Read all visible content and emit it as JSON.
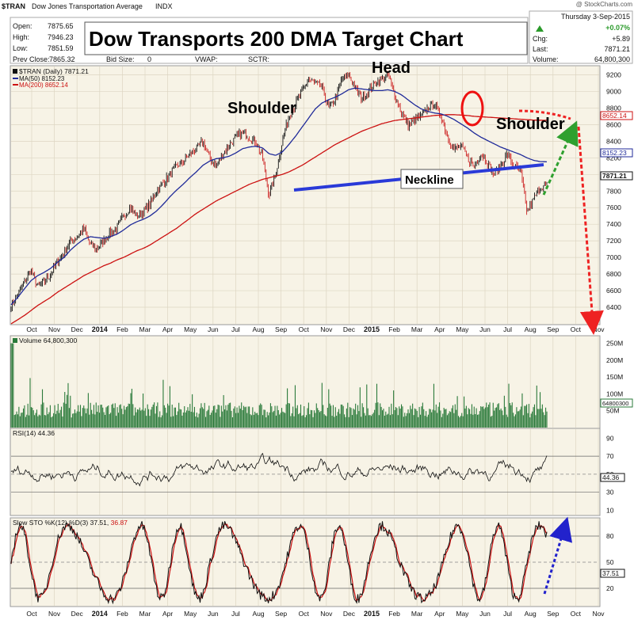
{
  "header": {
    "symbol": "$TRAN",
    "name": "Dow Jones Transportation Average",
    "exchange": "INDX",
    "date": "Thursday  3-Sep-2015",
    "watermark": "@ StockCharts.com",
    "title_box": "Dow Transports 200 DMA Target Chart",
    "fields_left": [
      {
        "label": "Open:",
        "value": "7875.65"
      },
      {
        "label": "High:",
        "value": "7946.23"
      },
      {
        "label": "Low:",
        "value": "7851.59"
      }
    ],
    "prev_close": {
      "label": "Prev Close:",
      "value": "7865.32"
    },
    "bid_size": {
      "label": "Bid Size:",
      "value": "0"
    },
    "vwap": {
      "label": "VWAP:"
    },
    "sctr": {
      "label": "SCTR:"
    },
    "change_pct": "+0.07%",
    "chg": {
      "label": "Chg:",
      "value": "+5.89"
    },
    "last": {
      "label": "Last:",
      "value": "7871.21"
    },
    "volume": {
      "label": "Volume:",
      "value": "64,800,300"
    }
  },
  "legend": {
    "price": "$TRAN (Daily) 7871.21",
    "ma50": "MA(50) 8152.23",
    "ma200": "MA(200) 8652.14"
  },
  "labels": {
    "volume": "Volume 64,800,300",
    "rsi": "RSI(14) 44.36",
    "sto_prefix": "Slow STO %K(12) %D(3) 37.51,",
    "sto_d": "36.87"
  },
  "annotations": {
    "head": "Head",
    "shoulder_left": "Shoulder",
    "shoulder_right": "Shoulder",
    "neckline": "Neckline"
  },
  "colors": {
    "panel_bg": "#f7f3e6",
    "price_up": "#111111",
    "price_down": "#cc2222",
    "ma50": "#1f2a99",
    "ma200": "#cc1111",
    "neckline": "#2a3ad8",
    "volume": "#2a7a3a",
    "green_arrow": "#2fa02f",
    "blue_arrow": "#2222cc",
    "red_arrow": "#ee2222"
  },
  "chart_data": {
    "type": "line",
    "x_ticks": [
      "Oct",
      "Nov",
      "Dec",
      "2014",
      "Feb",
      "Mar",
      "Apr",
      "May",
      "Jun",
      "Jul",
      "Aug",
      "Sep",
      "Oct",
      "Nov",
      "Dec",
      "2015",
      "Feb",
      "Mar",
      "Apr",
      "May",
      "Jun",
      "Jul",
      "Aug",
      "Sep",
      "Oct",
      "Nov"
    ],
    "price_axis": {
      "ticks": [
        6400,
        6600,
        6800,
        7000,
        7200,
        7400,
        7600,
        7800,
        8000,
        8200,
        8400,
        8600,
        8800,
        9000,
        9200
      ],
      "ylim": [
        6200,
        9300
      ]
    },
    "price_series": [
      {
        "name": "$TRAN",
        "values": [
          6420,
          6550,
          6700,
          6850,
          6650,
          6700,
          6800,
          6950,
          7050,
          7200,
          7250,
          7350,
          7150,
          7100,
          7200,
          7300,
          7350,
          7500,
          7600,
          7500,
          7550,
          7650,
          7800,
          7900,
          8000,
          8100,
          8150,
          8250,
          8300,
          8400,
          8200,
          8100,
          8250,
          8350,
          8450,
          8500,
          8450,
          8400,
          8200,
          7750,
          8000,
          8400,
          8700,
          8850,
          9000,
          9150,
          9100,
          9050,
          8800,
          8900,
          9150,
          9200,
          9050,
          8900,
          9000,
          9100,
          9150,
          9200,
          8950,
          8750,
          8600,
          8650,
          8700,
          8800,
          8850,
          8700,
          8450,
          8300,
          8350,
          8200,
          8100,
          8250,
          8150,
          8000,
          8100,
          8250,
          8100,
          8050,
          7550,
          7700,
          7850,
          7870
        ]
      },
      {
        "name": "MA(50)",
        "values": [
          6430,
          6520,
          6620,
          6720,
          6780,
          6820,
          6870,
          6940,
          7000,
          7090,
          7160,
          7220,
          7250,
          7240,
          7230,
          7250,
          7280,
          7330,
          7390,
          7430,
          7460,
          7500,
          7560,
          7640,
          7730,
          7810,
          7880,
          7960,
          8030,
          8110,
          8160,
          8190,
          8200,
          8220,
          8260,
          8310,
          8330,
          8340,
          8320,
          8250,
          8230,
          8270,
          8360,
          8460,
          8570,
          8680,
          8790,
          8860,
          8900,
          8930,
          8970,
          9020,
          9040,
          9030,
          9020,
          9010,
          9010,
          9020,
          9000,
          8960,
          8900,
          8840,
          8790,
          8760,
          8740,
          8730,
          8700,
          8660,
          8610,
          8560,
          8500,
          8450,
          8410,
          8370,
          8330,
          8300,
          8270,
          8240,
          8200,
          8170,
          8155,
          8152
        ]
      },
      {
        "name": "MA(200)",
        "values": [
          6200,
          6250,
          6300,
          6360,
          6420,
          6470,
          6520,
          6580,
          6630,
          6680,
          6730,
          6780,
          6820,
          6860,
          6900,
          6930,
          6970,
          7000,
          7040,
          7080,
          7110,
          7150,
          7200,
          7250,
          7300,
          7350,
          7410,
          7470,
          7530,
          7580,
          7630,
          7680,
          7720,
          7760,
          7800,
          7840,
          7880,
          7910,
          7940,
          7960,
          7980,
          8000,
          8030,
          8070,
          8110,
          8160,
          8210,
          8260,
          8310,
          8360,
          8400,
          8440,
          8480,
          8520,
          8550,
          8580,
          8610,
          8630,
          8650,
          8660,
          8670,
          8680,
          8690,
          8700,
          8710,
          8715,
          8720,
          8720,
          8715,
          8710,
          8700,
          8695,
          8690,
          8685,
          8680,
          8675,
          8670,
          8665,
          8660,
          8655,
          8653,
          8652
        ]
      }
    ],
    "volume_axis": {
      "ticks": [
        "250M",
        "200M",
        "150M",
        "100M",
        "50M"
      ]
    },
    "rsi_axis": {
      "ticks": [
        90,
        70,
        50,
        30,
        10
      ],
      "current": 44.36
    },
    "sto_axis": {
      "ticks": [
        80,
        50,
        20
      ],
      "current_k": 37.51,
      "current_d": 36.87
    },
    "last_labels": {
      "ma200": "8652.14",
      "ma50": "8152.23",
      "price": "7871.21",
      "volume": "64800300",
      "rsi": "44.36",
      "sto": "37.51"
    }
  }
}
